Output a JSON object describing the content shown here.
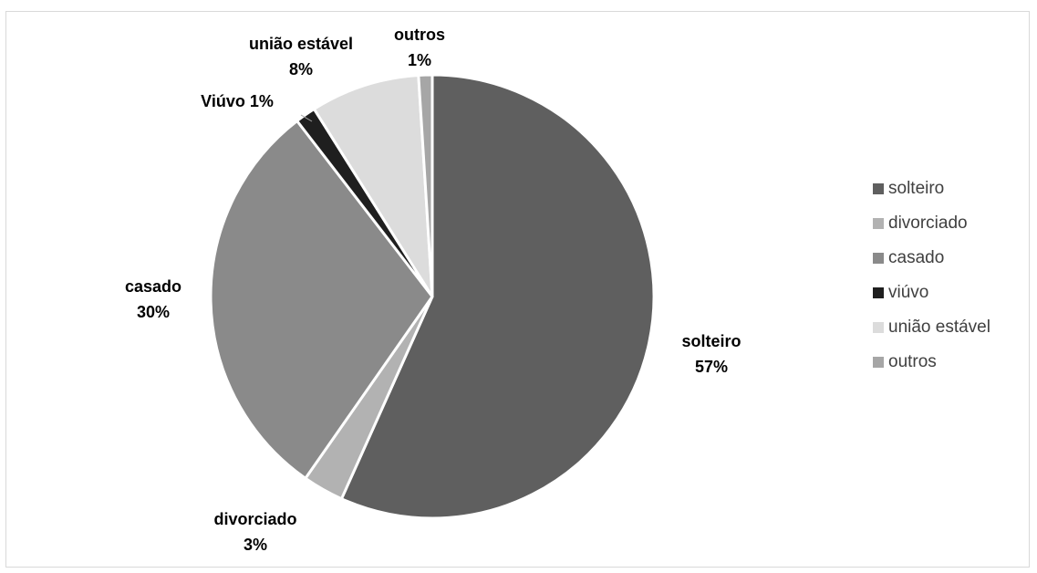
{
  "chart_data": {
    "type": "pie",
    "title": "",
    "start_angle_deg": 0,
    "direction": "clockwise",
    "slices": [
      {
        "key": "solteiro",
        "legend": "solteiro",
        "value": 57,
        "color": "#5f5f5f",
        "label_name": "solteiro",
        "label_pct": "57%"
      },
      {
        "key": "divorciado",
        "legend": "divorciado",
        "value": 3,
        "color": "#b2b2b2",
        "label_name": "divorciado",
        "label_pct": "3%"
      },
      {
        "key": "casado",
        "legend": "casado",
        "value": 30,
        "color": "#8a8a8a",
        "label_name": "casado",
        "label_pct": "30%"
      },
      {
        "key": "viuvo",
        "legend": "viúvo",
        "value": 1.5,
        "color": "#1f1f1f",
        "label_name": "Viúvo 1%",
        "label_pct": ""
      },
      {
        "key": "uniao-estavel",
        "legend": "união estável",
        "value": 8,
        "color": "#dcdcdc",
        "label_name": "união estável",
        "label_pct": "8%"
      },
      {
        "key": "outros",
        "legend": "outros",
        "value": 1,
        "color": "#a6a6a6",
        "label_name": "outros",
        "label_pct": "1%"
      }
    ],
    "legend_position": "right",
    "slice_separator_color": "#ffffff"
  }
}
